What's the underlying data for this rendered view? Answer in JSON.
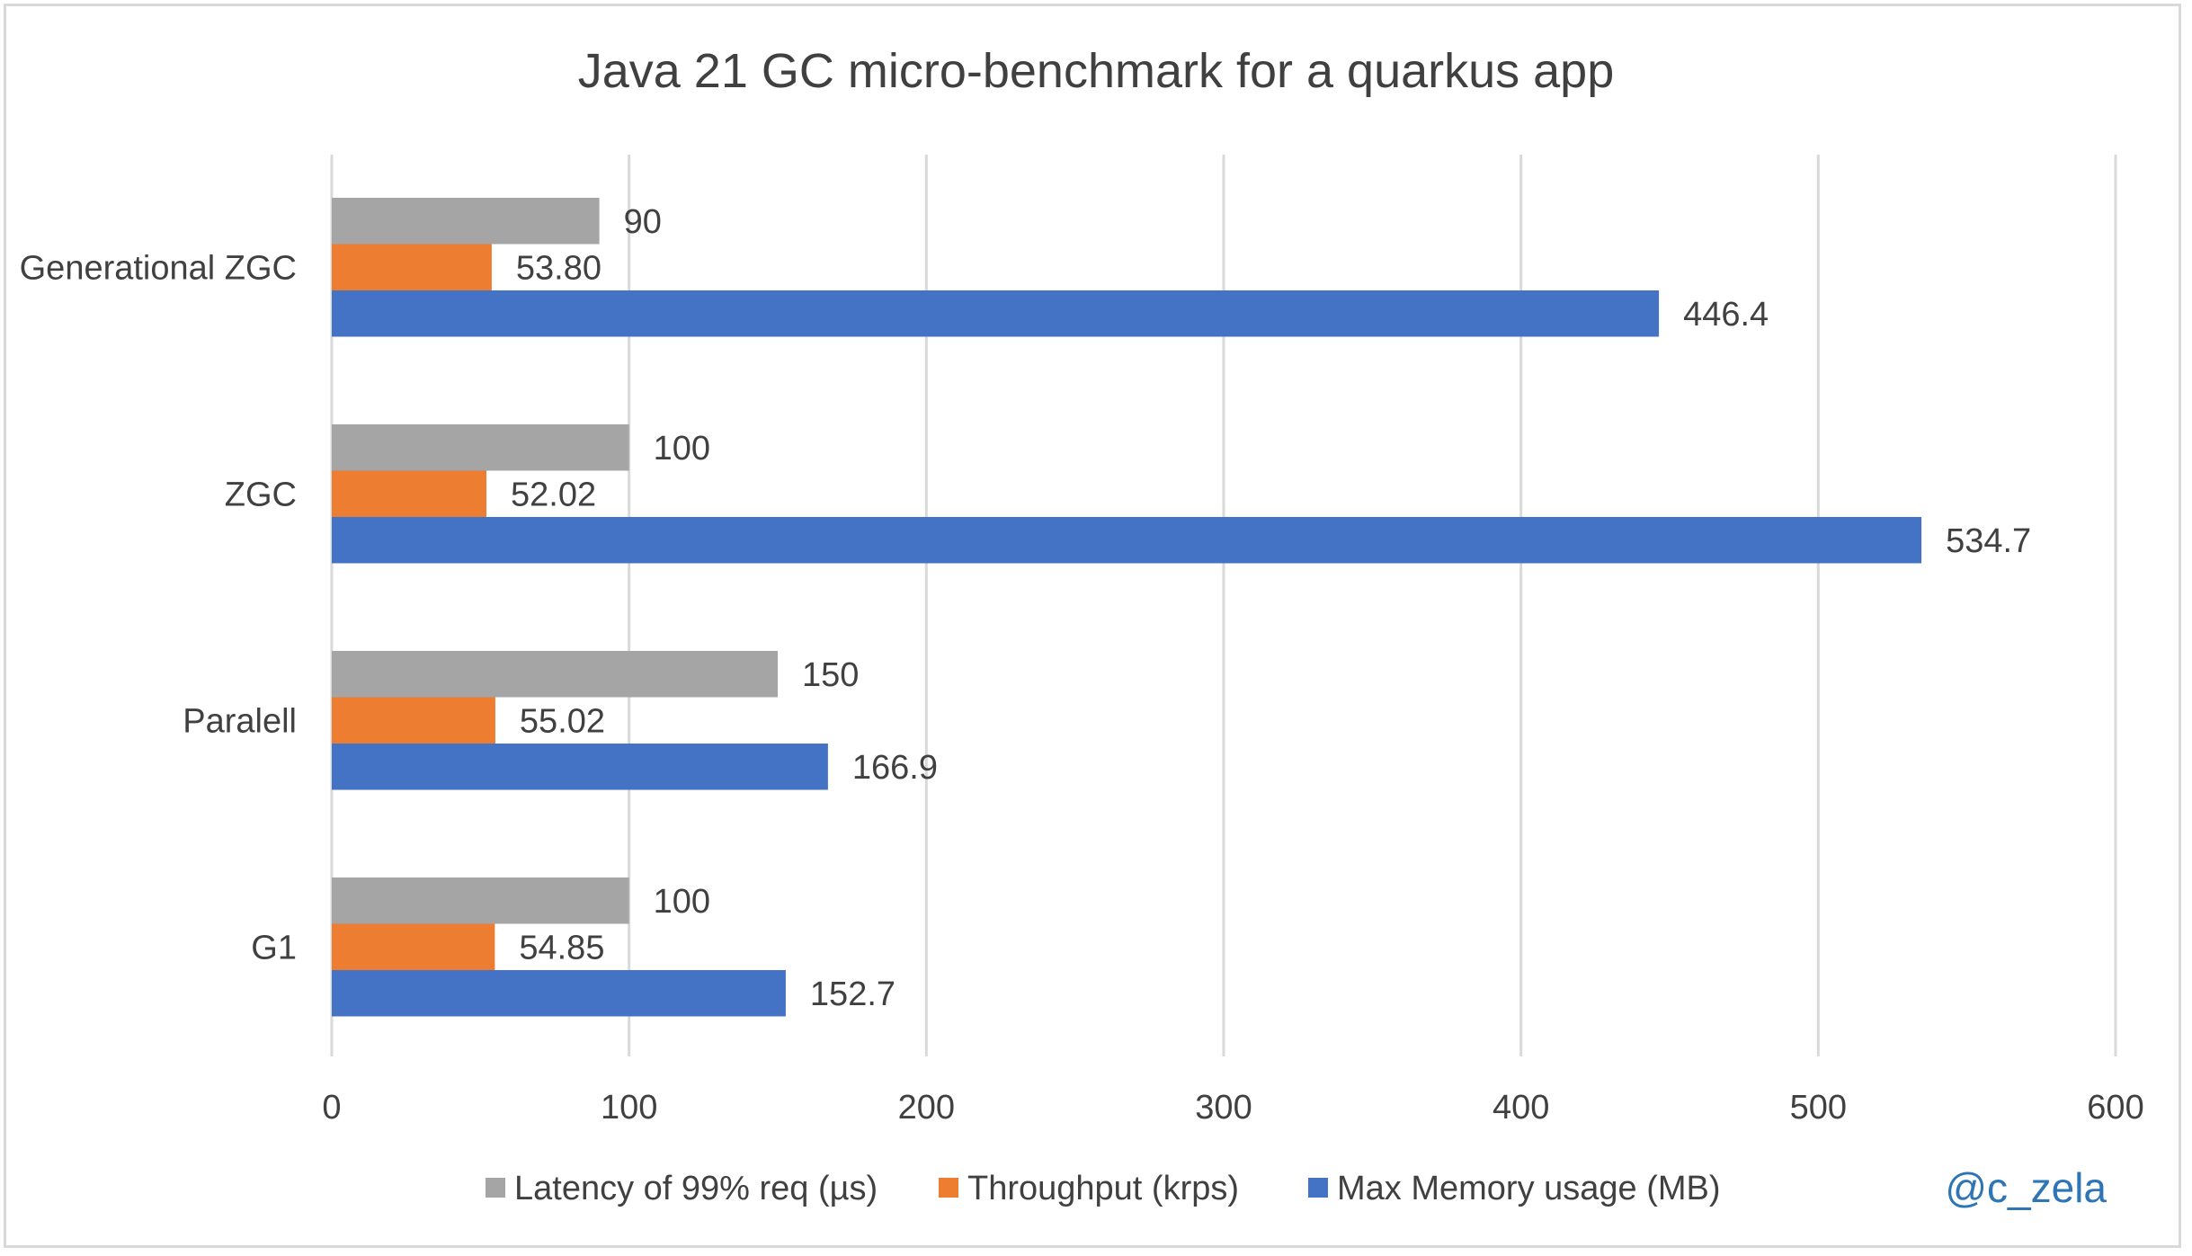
{
  "chart_data": {
    "type": "bar",
    "orientation": "horizontal",
    "title": "Java 21 GC micro-benchmark for a quarkus app",
    "categories": [
      "Generational ZGC",
      "ZGC",
      "Paralell",
      "G1"
    ],
    "series": [
      {
        "name": "Latency of 99% req (µs)",
        "color": "#a5a5a5",
        "values": [
          90,
          100,
          150,
          100
        ],
        "labels": [
          "90",
          "100",
          "150",
          "100"
        ]
      },
      {
        "name": "Throughput (krps)",
        "color": "#ed7d31",
        "values": [
          53.8,
          52.02,
          55.02,
          54.85
        ],
        "labels": [
          "53.80",
          "52.02",
          "55.02",
          "54.85"
        ]
      },
      {
        "name": "Max Memory usage (MB)",
        "color": "#4472c4",
        "values": [
          446.4,
          534.7,
          166.9,
          152.7
        ],
        "labels": [
          "446.4",
          "534.7",
          "166.9",
          "152.7"
        ]
      }
    ],
    "xlim": [
      0,
      600
    ],
    "xticks": [
      "0",
      "100",
      "200",
      "300",
      "400",
      "500",
      "600"
    ],
    "grid": true,
    "legend_position": "bottom",
    "watermark": "@c_zela",
    "watermark_color": "#2e75b6",
    "text_color": "#404040",
    "grid_color": "#d9d9d9"
  }
}
